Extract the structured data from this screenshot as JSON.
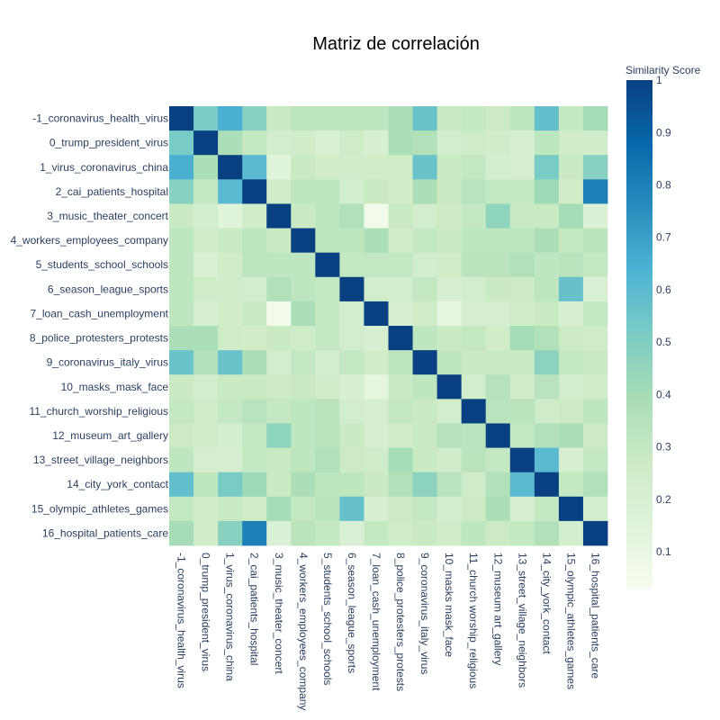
{
  "chart_data": {
    "type": "heatmap",
    "title": "Matriz de correlación",
    "colorbar": {
      "title": "Similarity Score",
      "range": [
        0.03,
        1
      ],
      "ticks": [
        0.1,
        0.2,
        0.3,
        0.4,
        0.5,
        0.6,
        0.7,
        0.8,
        0.9,
        1
      ],
      "tick_labels": [
        "0.1",
        "0.2",
        "0.3",
        "0.4",
        "0.5",
        "0.6",
        "0.7",
        "0.8",
        "0.9",
        "1"
      ],
      "colorscale": [
        "#f7fcf0",
        "#e0f3db",
        "#ccebc5",
        "#a8ddb5",
        "#7bccc4",
        "#4eb3d3",
        "#2b8cbe",
        "#0868ac",
        "#084081"
      ]
    },
    "y_labels": [
      "-1_coronavirus_health_virus",
      "0_trump_president_virus",
      "1_virus_coronavirus_china",
      "2_cai_patients_hospital",
      "3_music_theater_concert",
      "4_workers_employees_company",
      "5_students_school_schools",
      "6_season_league_sports",
      "7_loan_cash_unemployment",
      "8_police_protesters_protests",
      "9_coronavirus_italy_virus",
      "10_masks_mask_face",
      "11_church_worship_religious",
      "12_museum_art_gallery",
      "13_street_village_neighbors",
      "14_city_york_contact",
      "15_olympic_athletes_games",
      "16_hospital_patients_care"
    ],
    "x_labels": [
      "-1_coronavirus_health_virus",
      "0_trump_president_virus",
      "1_virus_coronavirus_china",
      "2_cai_patients_hospital",
      "3_music_theater_concert",
      "4_workers_employees_company",
      "5_students_school_schools",
      "6_season_league_sports",
      "7_loan_cash_unemployment",
      "8_police_protesters_protests",
      "9_coronavirus_italy_virus",
      "10_masks mask_face",
      "11_church worship_religious",
      "12_museum art_gallery",
      "13_street_village_neighbors",
      "14_city_york_contact",
      "15_olympic_athletes_games",
      "16_hospital_patients_care"
    ],
    "z": [
      [
        1.0,
        0.52,
        0.65,
        0.48,
        0.28,
        0.32,
        0.32,
        0.32,
        0.32,
        0.38,
        0.56,
        0.28,
        0.3,
        0.27,
        0.32,
        0.58,
        0.3,
        0.4
      ],
      [
        0.52,
        1.0,
        0.38,
        0.3,
        0.24,
        0.25,
        0.2,
        0.26,
        0.21,
        0.38,
        0.36,
        0.24,
        0.26,
        0.25,
        0.22,
        0.32,
        0.25,
        0.25
      ],
      [
        0.65,
        0.38,
        1.0,
        0.6,
        0.15,
        0.28,
        0.25,
        0.25,
        0.25,
        0.26,
        0.56,
        0.28,
        0.3,
        0.23,
        0.22,
        0.52,
        0.28,
        0.48
      ],
      [
        0.48,
        0.3,
        0.6,
        1.0,
        0.25,
        0.32,
        0.32,
        0.24,
        0.28,
        0.25,
        0.38,
        0.28,
        0.34,
        0.3,
        0.3,
        0.42,
        0.25,
        0.8
      ],
      [
        0.28,
        0.24,
        0.15,
        0.25,
        1.0,
        0.28,
        0.32,
        0.36,
        0.06,
        0.28,
        0.24,
        0.27,
        0.3,
        0.46,
        0.28,
        0.28,
        0.4,
        0.18
      ],
      [
        0.32,
        0.25,
        0.28,
        0.32,
        0.28,
        1.0,
        0.32,
        0.32,
        0.38,
        0.26,
        0.3,
        0.28,
        0.32,
        0.32,
        0.32,
        0.38,
        0.3,
        0.33
      ],
      [
        0.32,
        0.2,
        0.25,
        0.32,
        0.32,
        0.32,
        1.0,
        0.3,
        0.3,
        0.3,
        0.24,
        0.25,
        0.33,
        0.33,
        0.36,
        0.32,
        0.33,
        0.3
      ],
      [
        0.32,
        0.26,
        0.25,
        0.24,
        0.36,
        0.32,
        0.3,
        1.0,
        0.24,
        0.24,
        0.3,
        0.21,
        0.24,
        0.28,
        0.27,
        0.32,
        0.57,
        0.19
      ],
      [
        0.32,
        0.21,
        0.25,
        0.28,
        0.06,
        0.38,
        0.3,
        0.24,
        1.0,
        0.21,
        0.25,
        0.12,
        0.22,
        0.22,
        0.26,
        0.28,
        0.21,
        0.3
      ],
      [
        0.38,
        0.38,
        0.26,
        0.25,
        0.28,
        0.26,
        0.3,
        0.24,
        0.21,
        1.0,
        0.32,
        0.28,
        0.3,
        0.25,
        0.4,
        0.36,
        0.27,
        0.26
      ],
      [
        0.56,
        0.36,
        0.56,
        0.38,
        0.24,
        0.3,
        0.24,
        0.3,
        0.25,
        0.32,
        1.0,
        0.32,
        0.28,
        0.28,
        0.28,
        0.47,
        0.3,
        0.28
      ],
      [
        0.28,
        0.24,
        0.28,
        0.28,
        0.27,
        0.28,
        0.25,
        0.21,
        0.12,
        0.28,
        0.32,
        1.0,
        0.24,
        0.35,
        0.25,
        0.34,
        0.24,
        0.25
      ],
      [
        0.3,
        0.26,
        0.3,
        0.34,
        0.3,
        0.32,
        0.33,
        0.24,
        0.22,
        0.3,
        0.28,
        0.24,
        1.0,
        0.34,
        0.33,
        0.26,
        0.27,
        0.32
      ],
      [
        0.27,
        0.25,
        0.23,
        0.3,
        0.46,
        0.32,
        0.33,
        0.28,
        0.22,
        0.25,
        0.28,
        0.35,
        0.34,
        1.0,
        0.3,
        0.36,
        0.38,
        0.27
      ],
      [
        0.32,
        0.22,
        0.22,
        0.3,
        0.28,
        0.32,
        0.36,
        0.27,
        0.26,
        0.4,
        0.28,
        0.25,
        0.33,
        0.3,
        1.0,
        0.6,
        0.21,
        0.3
      ],
      [
        0.58,
        0.32,
        0.52,
        0.42,
        0.28,
        0.38,
        0.32,
        0.32,
        0.28,
        0.36,
        0.47,
        0.34,
        0.26,
        0.36,
        0.6,
        1.0,
        0.3,
        0.36
      ],
      [
        0.3,
        0.25,
        0.28,
        0.25,
        0.4,
        0.3,
        0.33,
        0.57,
        0.21,
        0.27,
        0.3,
        0.24,
        0.27,
        0.38,
        0.21,
        0.3,
        1.0,
        0.23
      ],
      [
        0.4,
        0.25,
        0.48,
        0.8,
        0.18,
        0.33,
        0.3,
        0.19,
        0.3,
        0.26,
        0.28,
        0.25,
        0.32,
        0.27,
        0.3,
        0.36,
        0.23,
        1.0
      ]
    ]
  }
}
